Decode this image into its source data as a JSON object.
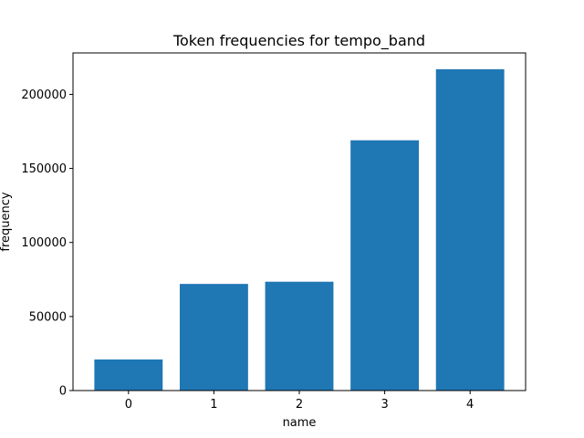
{
  "chart_data": {
    "type": "bar",
    "title": "Token frequencies for tempo_band",
    "xlabel": "name",
    "ylabel": "frequency",
    "categories": [
      "0",
      "1",
      "2",
      "3",
      "4"
    ],
    "values": [
      21000,
      72000,
      73500,
      169000,
      217000
    ],
    "ylim": [
      0,
      228000
    ],
    "yticks": [
      0,
      50000,
      100000,
      150000,
      200000
    ],
    "ytick_labels": [
      "0",
      "50000",
      "100000",
      "150000",
      "200000"
    ],
    "grid": false,
    "bar_color": "#1f77b4"
  }
}
